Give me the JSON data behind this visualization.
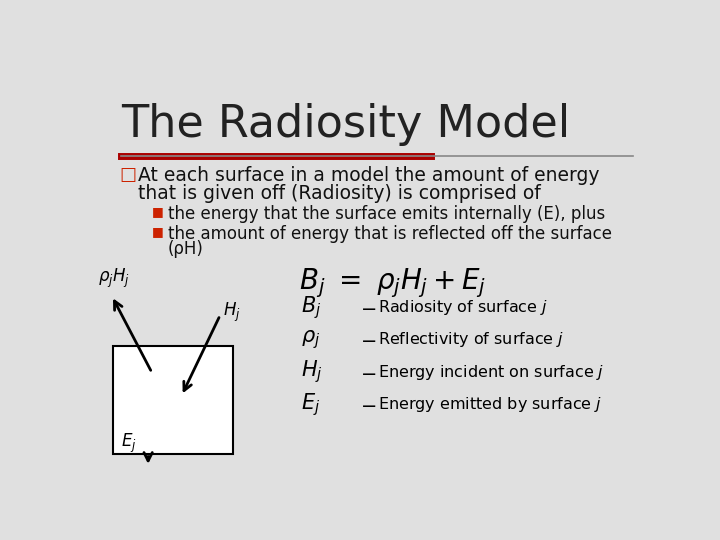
{
  "title": "The Radiosity Model",
  "title_fontsize": 32,
  "title_color": "#222222",
  "slide_bg": "#e0e0e0",
  "red_bar_color": "#aa0000",
  "gray_bar_color": "#888888",
  "bullet_color": "#cc2200",
  "sub_bullet_color": "#cc2200",
  "text_color": "#111111",
  "bullet_main_line1": "At each surface in a model the amount of energy",
  "bullet_main_line2": "that is given off (Radiosity) is comprised of",
  "sub_bullet_1": "the energy that the surface emits internally (E), plus",
  "sub_bullet_2a": "the amount of energy that is reflected off the surface",
  "sub_bullet_2b": "(ρH)"
}
